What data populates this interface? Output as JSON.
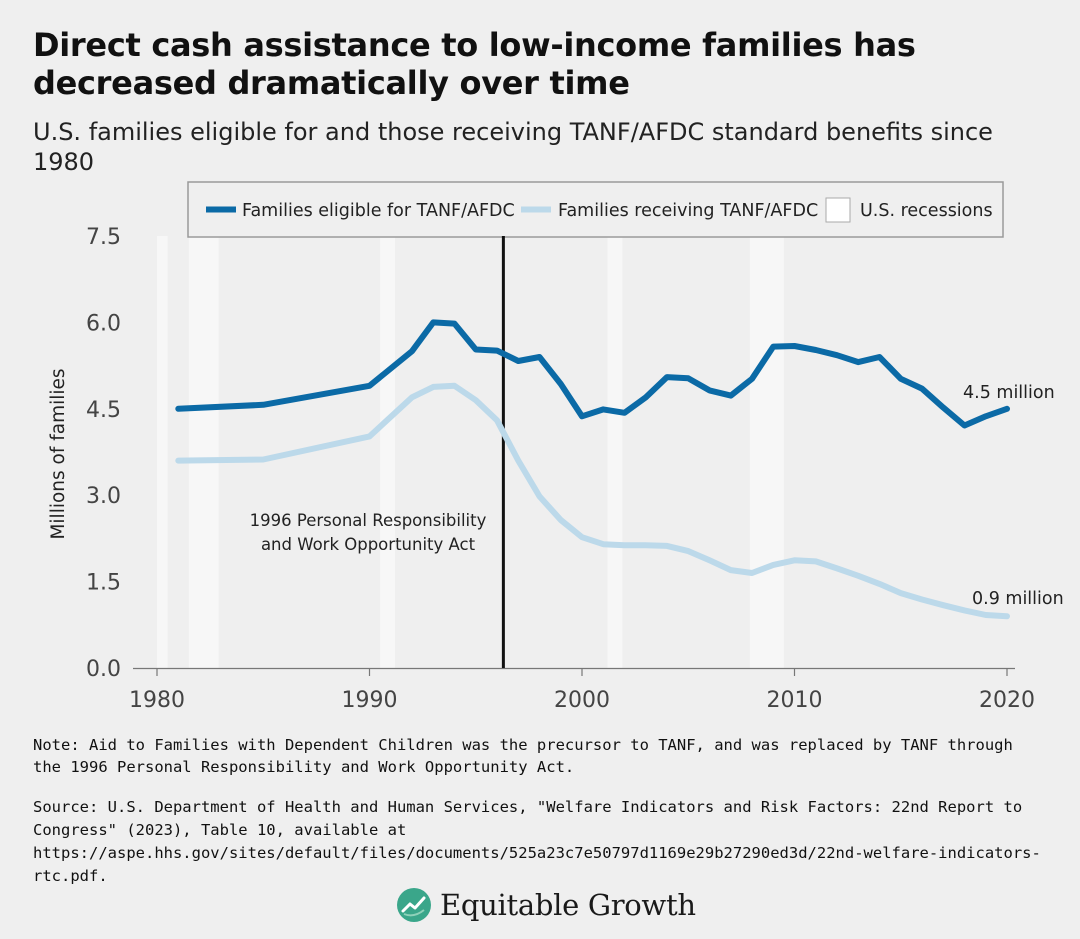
{
  "title": "Direct cash assistance to low-income families has decreased dramatically over time",
  "subtitle": "U.S. families eligible for and those receiving TANF/AFDC standard benefits since 1980",
  "colors": {
    "eligible": "#0b6aa6",
    "receiving": "#bcd9ea",
    "recession": "#f7f7f7",
    "background": "#efefef"
  },
  "chart_data": {
    "type": "line",
    "title": "Direct cash assistance to low-income families has decreased dramatically over time",
    "xlabel": "",
    "ylabel": "Millions of families",
    "xlim": [
      1980,
      2020
    ],
    "ylim": [
      0,
      7.5
    ],
    "x_ticks": [
      1980,
      1990,
      2000,
      2010,
      2020
    ],
    "x_tick_labels": [
      "1980",
      "1990",
      "2000",
      "2010",
      "2020"
    ],
    "y_ticks": [
      0,
      1.5,
      3,
      4.5,
      6,
      7.5
    ],
    "y_tick_labels": [
      "0.0",
      "1.5",
      "3.0",
      "4.5",
      "6.0",
      "7.5"
    ],
    "grid": false,
    "legend_position": "top",
    "legend": {
      "eligible": "Families eligible for TANF/AFDC",
      "receiving": "Families receiving TANF/AFDC",
      "recessions": "U.S. recessions"
    },
    "series": [
      {
        "name": "Families eligible for TANF/AFDC",
        "x": [
          1981,
          1985,
          1990,
          1992,
          1993,
          1994,
          1995,
          1996,
          1997,
          1998,
          1999,
          2000,
          2001,
          2002,
          2003,
          2004,
          2005,
          2006,
          2007,
          2008,
          2009,
          2010,
          2011,
          2012,
          2013,
          2014,
          2015,
          2016,
          2017,
          2018,
          2019,
          2020
        ],
        "values": [
          4.5,
          4.57,
          4.9,
          5.5,
          6.0,
          5.98,
          5.53,
          5.51,
          5.33,
          5.4,
          4.93,
          4.37,
          4.49,
          4.43,
          4.7,
          5.05,
          5.03,
          4.82,
          4.73,
          5.02,
          5.58,
          5.59,
          5.52,
          5.43,
          5.31,
          5.4,
          5.02,
          4.85,
          4.52,
          4.21,
          4.37,
          4.5
        ]
      },
      {
        "name": "Families receiving TANF/AFDC",
        "x": [
          1981,
          1985,
          1990,
          1992,
          1993,
          1994,
          1995,
          1996,
          1997,
          1998,
          1999,
          2000,
          2001,
          2002,
          2003,
          2004,
          2005,
          2006,
          2007,
          2008,
          2009,
          2010,
          2011,
          2012,
          2013,
          2014,
          2015,
          2016,
          2017,
          2018,
          2019,
          2020
        ],
        "values": [
          3.6,
          3.62,
          4.02,
          4.7,
          4.88,
          4.9,
          4.65,
          4.3,
          3.6,
          2.98,
          2.57,
          2.27,
          2.15,
          2.13,
          2.13,
          2.12,
          2.03,
          1.87,
          1.7,
          1.65,
          1.79,
          1.87,
          1.85,
          1.73,
          1.6,
          1.46,
          1.3,
          1.19,
          1.09,
          1.0,
          0.92,
          0.9
        ]
      }
    ],
    "recessions": [
      [
        1980.0,
        1980.5
      ],
      [
        1981.5,
        1982.9
      ],
      [
        1990.5,
        1991.2
      ],
      [
        2001.2,
        2001.9
      ],
      [
        2007.9,
        2009.5
      ]
    ],
    "end_labels": {
      "eligible": "4.5 million",
      "receiving": "0.9 million"
    },
    "annotation": {
      "year": 1996.3,
      "line1": "1996 Personal Responsibility",
      "line2": "and Work Opportunity Act"
    }
  },
  "note": "Note: Aid to Families with Dependent Children was the precursor to TANF, and was replaced by TANF through the 1996 Personal Responsibility and Work Opportunity Act.",
  "source": "Source: U.S. Department of Health and Human Services, \"Welfare Indicators and Risk Factors: 22nd Report to Congress\" (2023), Table 10, available at https://aspe.hhs.gov/sites/default/files/documents/525a23c7e50797d1169e29b27290ed3d/22nd-welfare-indicators-rtc.pdf.",
  "logo": {
    "text": "Equitable Growth",
    "icon": "equitable-growth-leaf-icon"
  }
}
